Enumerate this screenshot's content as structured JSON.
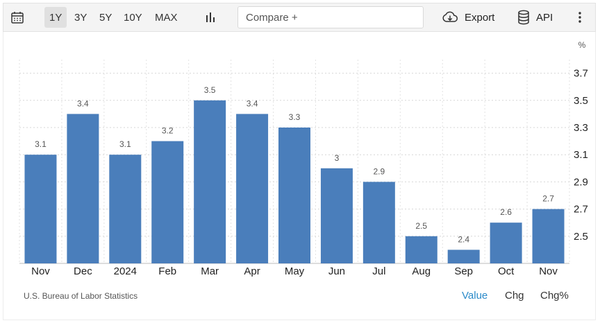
{
  "toolbar": {
    "ranges": [
      "1Y",
      "3Y",
      "5Y",
      "10Y",
      "MAX"
    ],
    "active_range": "1Y",
    "compare_placeholder": "Compare +",
    "export_label": "Export",
    "api_label": "API",
    "icons": {
      "calendar": "calendar-icon",
      "chart_type": "bar-chart-icon",
      "export": "cloud-download-icon",
      "api": "database-icon",
      "menu": "more-vertical-icon"
    }
  },
  "chart_data": {
    "type": "bar",
    "categories": [
      "Nov",
      "Dec",
      "2024",
      "Feb",
      "Mar",
      "Apr",
      "May",
      "Jun",
      "Jul",
      "Aug",
      "Sep",
      "Oct",
      "Nov"
    ],
    "values": [
      3.1,
      3.4,
      3.1,
      3.2,
      3.5,
      3.4,
      3.3,
      3.0,
      2.9,
      2.5,
      2.4,
      2.6,
      2.7
    ],
    "value_labels": [
      "3.1",
      "3.4",
      "3.1",
      "3.2",
      "3.5",
      "3.4",
      "3.3",
      "3",
      "2.9",
      "2.5",
      "2.4",
      "2.6",
      "2.7"
    ],
    "y_ticks": [
      "2.5",
      "2.7",
      "2.9",
      "3.1",
      "3.3",
      "3.5",
      "3.7"
    ],
    "y_unit": "%",
    "ylim": [
      2.3,
      3.8
    ],
    "y_axis_side": "right",
    "grid": "dashed",
    "bar_color": "#4a7ebb"
  },
  "footer": {
    "source": "U.S. Bureau of Labor Statistics",
    "tabs": [
      "Value",
      "Chg",
      "Chg%"
    ],
    "active_tab": "Value",
    "active_color": "#2a8ac9"
  }
}
